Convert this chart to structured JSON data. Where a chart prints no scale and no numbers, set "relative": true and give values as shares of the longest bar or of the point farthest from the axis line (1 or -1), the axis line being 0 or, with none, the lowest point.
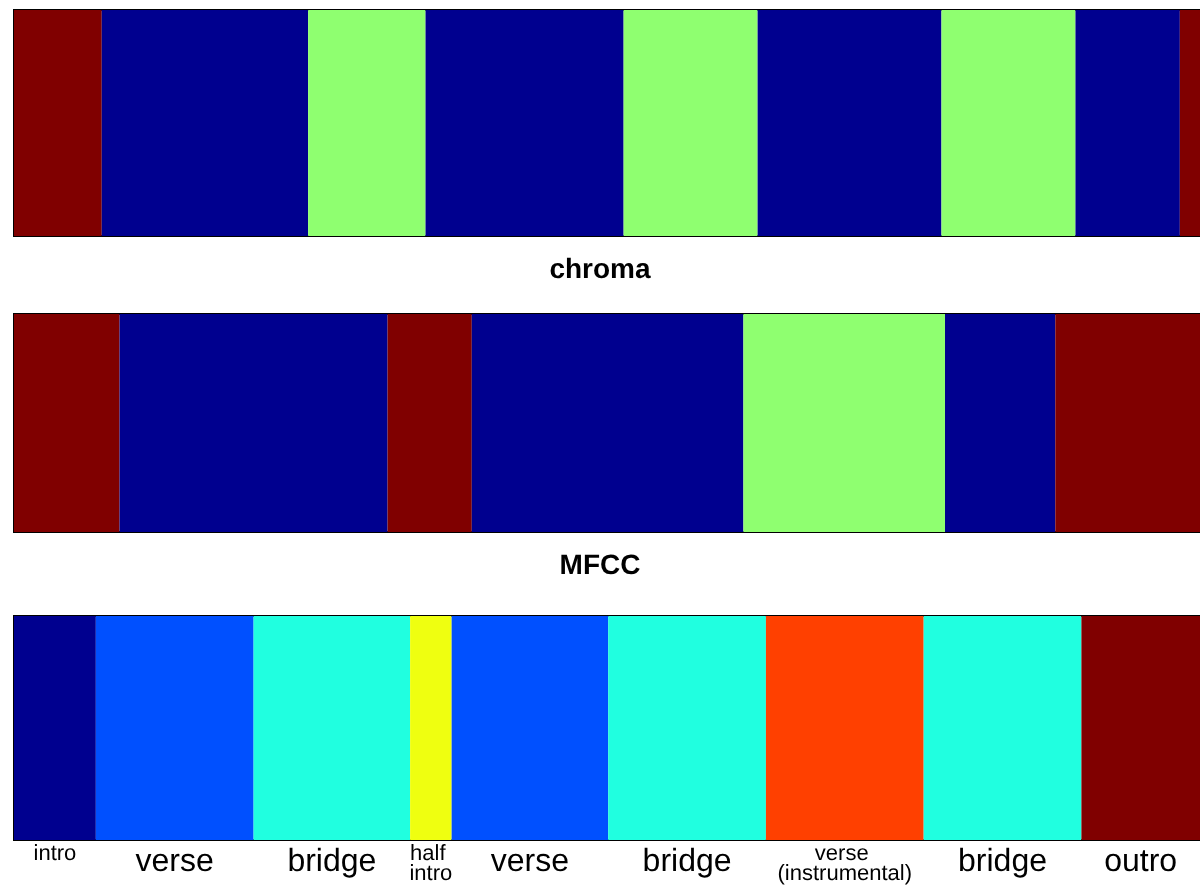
{
  "chart_data": [
    {
      "type": "bar",
      "orientation": "horizontal",
      "stacked": true,
      "relative": true,
      "xlabel": "chroma",
      "categories": [
        null
      ],
      "tick_labels": false,
      "series": [
        {
          "color": "#800000",
          "values": [
            0.074
          ]
        },
        {
          "color": "#00008f",
          "values": [
            0.174
          ]
        },
        {
          "color": "#8fff70",
          "values": [
            0.099
          ]
        },
        {
          "color": "#00008f",
          "values": [
            0.167
          ]
        },
        {
          "color": "#8fff70",
          "values": [
            0.113
          ]
        },
        {
          "color": "#00008f",
          "values": [
            0.155
          ]
        },
        {
          "color": "#8fff70",
          "values": [
            0.113
          ]
        },
        {
          "color": "#00008f",
          "values": [
            0.088
          ]
        },
        {
          "color": "#800000",
          "values": [
            0.017
          ]
        }
      ]
    },
    {
      "type": "bar",
      "orientation": "horizontal",
      "stacked": true,
      "relative": true,
      "xlabel": "MFCC",
      "categories": [
        null
      ],
      "tick_labels": false,
      "series": [
        {
          "color": "#800000",
          "values": [
            0.089
          ]
        },
        {
          "color": "#00008f",
          "values": [
            0.226
          ]
        },
        {
          "color": "#800000",
          "values": [
            0.071
          ]
        },
        {
          "color": "#00008f",
          "values": [
            0.229
          ]
        },
        {
          "color": "#8fff70",
          "values": [
            0.17
          ]
        },
        {
          "color": "#00008f",
          "values": [
            0.093
          ]
        },
        {
          "color": "#800000",
          "values": [
            0.122
          ]
        }
      ]
    },
    {
      "type": "bar",
      "orientation": "horizontal",
      "stacked": true,
      "relative": true,
      "categories": [
        null
      ],
      "tick_labels": false,
      "series": [
        {
          "name": "intro",
          "color": "#00008f",
          "values": [
            0.069
          ]
        },
        {
          "name": "verse",
          "color": "#0050ff",
          "values": [
            0.133
          ]
        },
        {
          "name": "bridge",
          "color": "#20ffe0",
          "values": [
            0.132
          ]
        },
        {
          "name": "half intro",
          "color": "#efff10",
          "values": [
            0.035
          ]
        },
        {
          "name": "verse",
          "color": "#0050ff",
          "values": [
            0.132
          ]
        },
        {
          "name": "bridge",
          "color": "#20ffe0",
          "values": [
            0.133
          ]
        },
        {
          "name": "verse (instrumental)",
          "color": "#ff4000",
          "values": [
            0.133
          ]
        },
        {
          "name": "bridge",
          "color": "#20ffe0",
          "values": [
            0.133
          ]
        },
        {
          "name": "outro",
          "color": "#800000",
          "values": [
            0.1
          ]
        }
      ]
    }
  ]
}
